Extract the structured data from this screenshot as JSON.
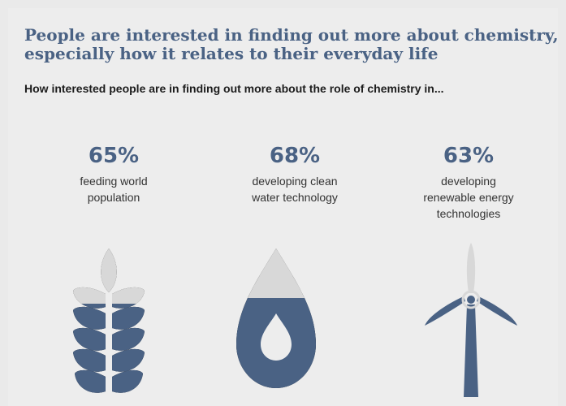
{
  "title_line1": "People are interested in finding out more about chemistry,",
  "title_line2": "especially how it relates to their everyday life",
  "subtitle": "How interested people are in finding out more about the role of chemistry in...",
  "colors": {
    "accent": "#4a6284",
    "light": "#d8d8d8",
    "background": "#ededed"
  },
  "chart_data": {
    "type": "infographic",
    "title": "People are interested in finding out more about chemistry, especially how it relates to their everyday life",
    "subtitle": "How interested people are in finding out more about the role of chemistry in...",
    "unit": "%",
    "items": [
      {
        "label": "feeding world\npopulation",
        "value": 65,
        "value_text": "65%",
        "icon": "wheat-icon"
      },
      {
        "label": "developing clean\nwater technology",
        "value": 68,
        "value_text": "68%",
        "icon": "water-drop-icon"
      },
      {
        "label": "developing\nrenewable energy\ntechnologies",
        "value": 63,
        "value_text": "63%",
        "icon": "wind-turbine-icon"
      }
    ]
  }
}
